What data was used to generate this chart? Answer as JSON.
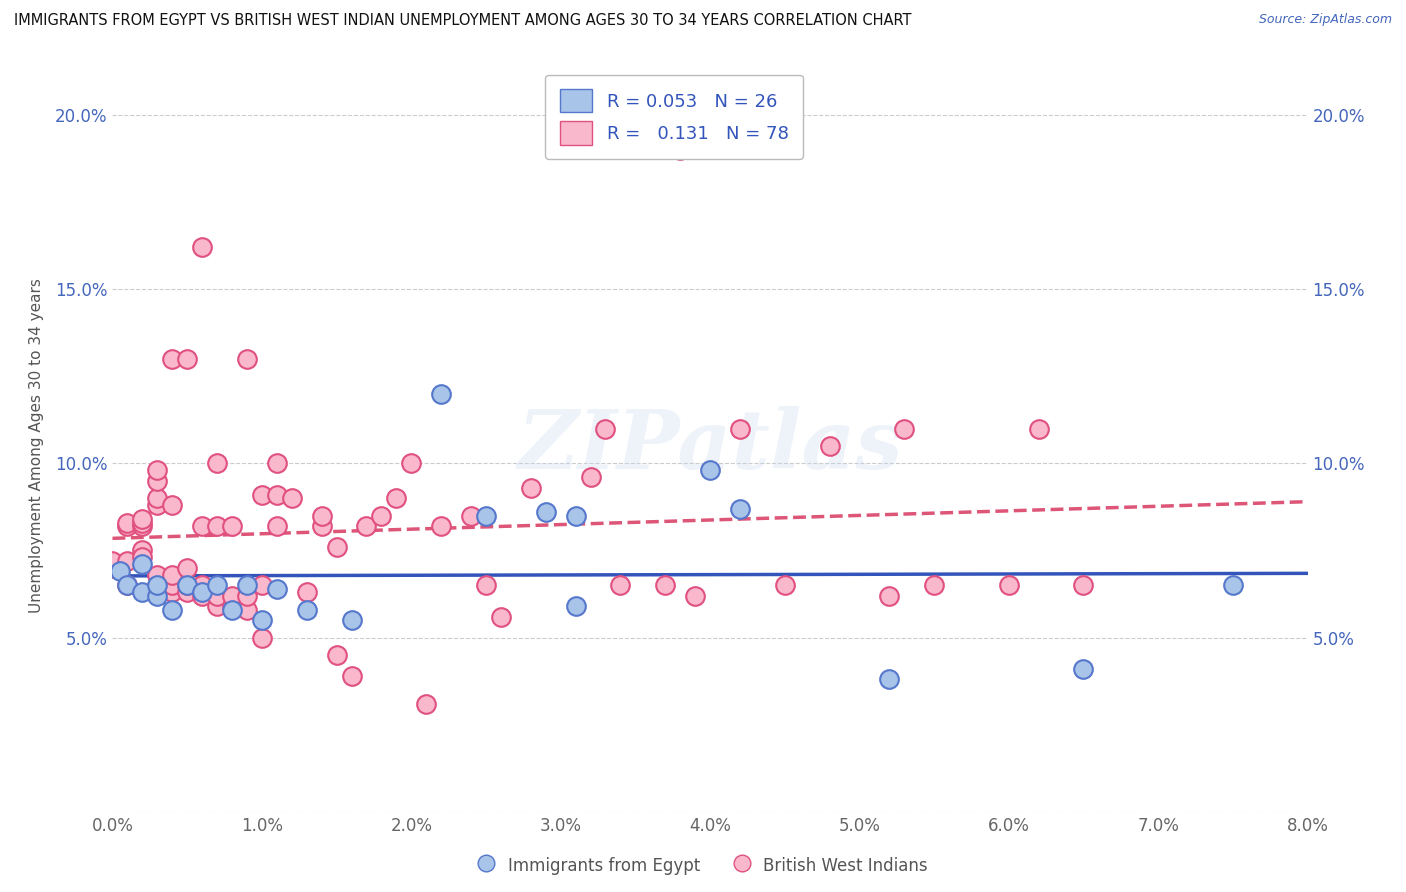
{
  "title": "IMMIGRANTS FROM EGYPT VS BRITISH WEST INDIAN UNEMPLOYMENT AMONG AGES 30 TO 34 YEARS CORRELATION CHART",
  "source": "Source: ZipAtlas.com",
  "ylabel": "Unemployment Among Ages 30 to 34 years",
  "xlim": [
    0.0,
    0.08
  ],
  "ylim": [
    0.0,
    0.21
  ],
  "xticks": [
    0.0,
    0.01,
    0.02,
    0.03,
    0.04,
    0.05,
    0.06,
    0.07,
    0.08
  ],
  "yticks": [
    0.0,
    0.05,
    0.1,
    0.15,
    0.2
  ],
  "xtick_labels": [
    "0.0%",
    "1.0%",
    "2.0%",
    "3.0%",
    "4.0%",
    "5.0%",
    "6.0%",
    "7.0%",
    "8.0%"
  ],
  "ytick_labels": [
    "",
    "5.0%",
    "10.0%",
    "15.0%",
    "20.0%"
  ],
  "blue_R": "0.053",
  "blue_N": "26",
  "pink_R": "0.131",
  "pink_N": "78",
  "blue_color": "#A8C4E8",
  "pink_color": "#FAB8CC",
  "blue_edge": "#5577CC",
  "pink_edge": "#E05080",
  "blue_line_color": "#3355BB",
  "pink_line_color": "#DD5577",
  "watermark": "ZIPatlas",
  "blue_scatter_x": [
    0.0005,
    0.001,
    0.002,
    0.002,
    0.003,
    0.003,
    0.004,
    0.005,
    0.006,
    0.007,
    0.008,
    0.009,
    0.01,
    0.011,
    0.013,
    0.016,
    0.022,
    0.025,
    0.029,
    0.031,
    0.031,
    0.04,
    0.042,
    0.052,
    0.065,
    0.075
  ],
  "blue_scatter_y": [
    0.069,
    0.065,
    0.063,
    0.071,
    0.062,
    0.065,
    0.058,
    0.065,
    0.063,
    0.065,
    0.058,
    0.065,
    0.055,
    0.064,
    0.058,
    0.055,
    0.12,
    0.085,
    0.086,
    0.085,
    0.059,
    0.098,
    0.087,
    0.038,
    0.041,
    0.065
  ],
  "pink_scatter_x": [
    0.0,
    0.0,
    0.001,
    0.001,
    0.001,
    0.001,
    0.002,
    0.002,
    0.002,
    0.002,
    0.002,
    0.003,
    0.003,
    0.003,
    0.003,
    0.003,
    0.003,
    0.004,
    0.004,
    0.004,
    0.004,
    0.004,
    0.005,
    0.005,
    0.005,
    0.005,
    0.006,
    0.006,
    0.006,
    0.006,
    0.007,
    0.007,
    0.007,
    0.007,
    0.008,
    0.008,
    0.008,
    0.009,
    0.009,
    0.009,
    0.01,
    0.01,
    0.01,
    0.011,
    0.011,
    0.011,
    0.012,
    0.013,
    0.014,
    0.014,
    0.015,
    0.015,
    0.016,
    0.017,
    0.018,
    0.019,
    0.02,
    0.021,
    0.022,
    0.024,
    0.025,
    0.026,
    0.028,
    0.032,
    0.033,
    0.034,
    0.037,
    0.038,
    0.039,
    0.042,
    0.045,
    0.048,
    0.052,
    0.053,
    0.055,
    0.06,
    0.062,
    0.065
  ],
  "pink_scatter_y": [
    0.07,
    0.072,
    0.065,
    0.072,
    0.082,
    0.083,
    0.075,
    0.073,
    0.082,
    0.083,
    0.084,
    0.065,
    0.068,
    0.088,
    0.09,
    0.095,
    0.098,
    0.063,
    0.065,
    0.068,
    0.088,
    0.13,
    0.063,
    0.065,
    0.07,
    0.13,
    0.062,
    0.065,
    0.082,
    0.162,
    0.059,
    0.062,
    0.082,
    0.1,
    0.059,
    0.062,
    0.082,
    0.058,
    0.062,
    0.13,
    0.05,
    0.065,
    0.091,
    0.082,
    0.1,
    0.091,
    0.09,
    0.063,
    0.082,
    0.085,
    0.076,
    0.045,
    0.039,
    0.082,
    0.085,
    0.09,
    0.1,
    0.031,
    0.082,
    0.085,
    0.065,
    0.056,
    0.093,
    0.096,
    0.11,
    0.065,
    0.065,
    0.19,
    0.062,
    0.11,
    0.065,
    0.105,
    0.062,
    0.11,
    0.065,
    0.065,
    0.11,
    0.065
  ]
}
